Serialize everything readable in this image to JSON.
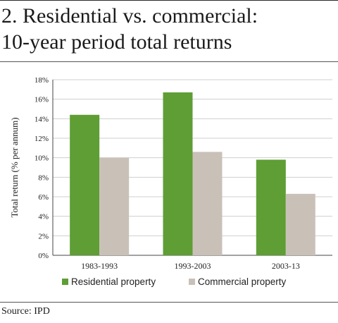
{
  "header": {
    "title_line1": "2. Residential vs. commercial:",
    "title_line2": "10-year period total returns"
  },
  "footer": {
    "source": "Source: IPD"
  },
  "colors": {
    "residential": "#5e9e34",
    "commercial": "#c9c1b8",
    "grid": "#cfcfcf"
  },
  "chart_data": {
    "type": "bar",
    "categories": [
      "1983-1993",
      "1993-2003",
      "2003-13"
    ],
    "series": [
      {
        "name": "Residential property",
        "values": [
          14.4,
          16.7,
          9.8
        ]
      },
      {
        "name": "Commercial property",
        "values": [
          10.0,
          10.6,
          6.3
        ]
      }
    ],
    "ylabel": "Total return (% per annum)",
    "ylim": [
      0,
      18
    ],
    "yticks": [
      "0%",
      "2%",
      "4%",
      "6%",
      "8%",
      "10%",
      "12%",
      "14%",
      "16%",
      "18%"
    ],
    "grid": true,
    "legend": "bottom"
  }
}
